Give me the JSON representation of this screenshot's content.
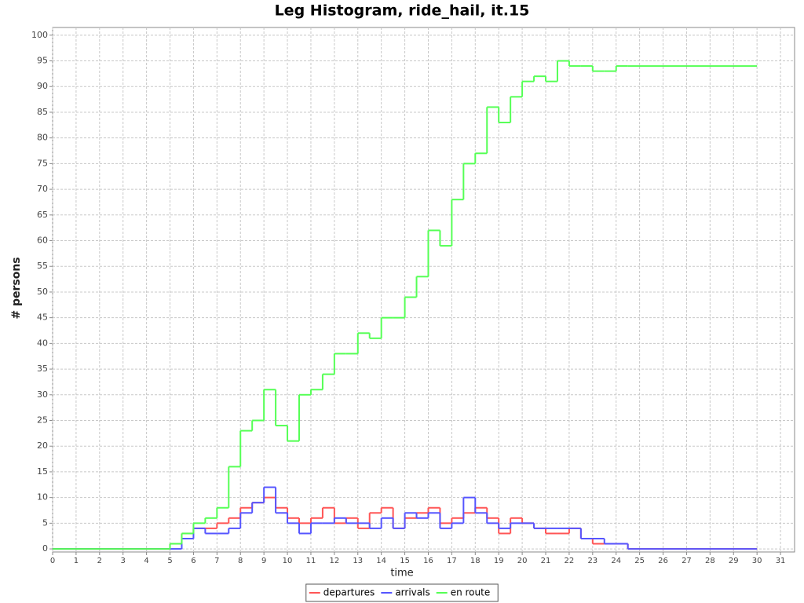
{
  "chart_data": {
    "type": "line",
    "step": true,
    "title": "Leg Histogram, ride_hail, it.15",
    "x_label": "time",
    "y_label": "# persons",
    "x": [
      0,
      5,
      5.5,
      6,
      6.5,
      7,
      7.5,
      8,
      8.5,
      9,
      9.5,
      10,
      10.5,
      11,
      11.5,
      12,
      12.5,
      13,
      13.5,
      14,
      14.5,
      15,
      15.5,
      16,
      16.5,
      17,
      17.5,
      18,
      18.5,
      19,
      19.5,
      20,
      20.5,
      21,
      21.5,
      22,
      22.5,
      23,
      23.5,
      24,
      24.5,
      30
    ],
    "series": [
      {
        "name": "departures",
        "color": "#ff5555",
        "values": [
          0,
          1,
          3,
          4,
          4,
          5,
          6,
          8,
          9,
          10,
          8,
          6,
          5,
          6,
          8,
          5,
          6,
          4,
          7,
          8,
          4,
          6,
          7,
          8,
          5,
          6,
          7,
          8,
          6,
          3,
          6,
          5,
          4,
          3,
          3,
          4,
          2,
          1,
          1,
          1,
          0,
          0
        ]
      },
      {
        "name": "arrivals",
        "color": "#5555ff",
        "values": [
          0,
          0,
          2,
          4,
          3,
          3,
          4,
          7,
          9,
          12,
          7,
          5,
          3,
          5,
          5,
          6,
          5,
          5,
          4,
          6,
          4,
          7,
          6,
          7,
          4,
          5,
          10,
          7,
          5,
          4,
          5,
          5,
          4,
          4,
          4,
          4,
          2,
          2,
          1,
          1,
          0,
          0
        ]
      },
      {
        "name": "en route",
        "color": "#55ff55",
        "values": [
          0,
          1,
          3,
          5,
          6,
          8,
          16,
          23,
          25,
          31,
          24,
          21,
          30,
          31,
          34,
          38,
          38,
          42,
          41,
          45,
          45,
          49,
          53,
          62,
          59,
          68,
          75,
          77,
          86,
          83,
          88,
          91,
          92,
          91,
          95,
          94,
          94,
          93,
          93,
          94,
          94,
          94
        ]
      }
    ],
    "xlim": [
      0,
      31.6
    ],
    "ylim": [
      -0.6,
      101.5
    ],
    "xticks": [
      0,
      1,
      2,
      3,
      4,
      5,
      6,
      7,
      8,
      9,
      10,
      11,
      12,
      13,
      14,
      15,
      16,
      17,
      18,
      19,
      20,
      21,
      22,
      23,
      24,
      25,
      26,
      27,
      28,
      29,
      30,
      31
    ],
    "yticks": [
      0,
      5,
      10,
      15,
      20,
      25,
      30,
      35,
      40,
      45,
      50,
      55,
      60,
      65,
      70,
      75,
      80,
      85,
      90,
      95,
      100
    ],
    "grid": true,
    "legend": "bottom"
  }
}
